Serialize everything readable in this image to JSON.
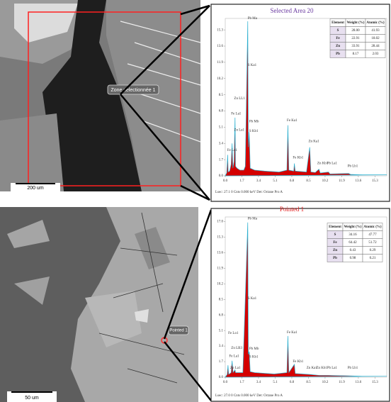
{
  "images": [
    {
      "label": "Zone sélectionnée 1",
      "scale": "200 um"
    },
    {
      "label": "Pointed 1",
      "scale": "50 um"
    }
  ],
  "chart_data": [
    {
      "type": "spectrum",
      "title": "Selected Area 20",
      "color": "#d40000",
      "line_color": "#2ab0d0",
      "footer": "Lsec: 27.1    0 Cnts    0.000 keV    Det: Octane Pro A",
      "xlim": [
        0,
        16.5
      ],
      "xticks": [
        {
          "value": 0,
          "label": "0.0"
        },
        1.7,
        3.4,
        5.1,
        6.8,
        8.5,
        10.2,
        11.9,
        13.6,
        15.3
      ],
      "ylim": [
        0,
        16.5
      ],
      "yticks": [
        {
          "value": 0,
          "label": "0.0"
        },
        1.7,
        3.4,
        5.1,
        6.8,
        8.5,
        10.2,
        11.9,
        13.6,
        15.3
      ],
      "x": [
        0,
        0.15,
        0.25,
        0.3,
        0.45,
        0.6,
        0.7,
        0.78,
        0.9,
        1.0,
        1.05,
        1.2,
        1.5,
        1.9,
        2.05,
        2.3,
        2.36,
        2.45,
        2.55,
        3.0,
        4.0,
        5.5,
        6.3,
        6.4,
        6.5,
        7.0,
        7.06,
        7.15,
        8.3,
        8.63,
        8.75,
        9.2,
        9.57,
        9.7,
        10.55,
        10.7,
        12.6,
        12.8,
        14,
        16.5
      ],
      "values": [
        0,
        0.3,
        2.2,
        0.4,
        0.5,
        1.2,
        3.4,
        0.8,
        1.5,
        6.1,
        1.0,
        0.8,
        0.6,
        0.6,
        1.0,
        16.2,
        3,
        4.6,
        0.8,
        0.6,
        0.5,
        0.4,
        0.6,
        5.3,
        0.6,
        0.5,
        1.3,
        0.5,
        0.4,
        3.0,
        0.4,
        0.35,
        0.7,
        0.3,
        0.4,
        0.2,
        0.25,
        0.15,
        0.1,
        0.1
      ],
      "annotations": [
        {
          "text": "Pb Ma",
          "x": 2.3,
          "y": 16.5
        },
        {
          "text": "S Ka1",
          "x": 2.3,
          "y": 11.6
        },
        {
          "text": "Zn LL1",
          "x": 0.9,
          "y": 8.1
        },
        {
          "text": "Fe La1",
          "x": 0.6,
          "y": 6.5
        },
        {
          "text": "Zn La1",
          "x": 0.9,
          "y": 4.8
        },
        {
          "text": "Pb Mb",
          "x": 2.45,
          "y": 5.7
        },
        {
          "text": "S Kb1",
          "x": 2.45,
          "y": 4.7
        },
        {
          "text": "Fe Lo1",
          "x": 0.2,
          "y": 2.7
        },
        {
          "text": "Fe Ka1",
          "x": 6.3,
          "y": 5.8
        },
        {
          "text": "Fe Kb1",
          "x": 6.9,
          "y": 1.9
        },
        {
          "text": "Zn Ka1",
          "x": 8.5,
          "y": 3.6
        },
        {
          "text": "Zn Kb1",
          "x": 9.4,
          "y": 1.3
        },
        {
          "text": "Pb La1",
          "x": 10.4,
          "y": 1.3
        },
        {
          "text": "Pb Lb1",
          "x": 12.5,
          "y": 1.0
        }
      ],
      "table": {
        "columns": [
          "Element",
          "Weight (%)",
          "Atomic (%)"
        ],
        "rows": [
          [
            "S",
            "28.00",
            "41.93"
          ],
          [
            "Fe",
            "22.91",
            "18.02"
          ],
          [
            "Zn",
            "33.91",
            "28.44"
          ],
          [
            "Pb",
            "8.17",
            "2.03"
          ]
        ]
      }
    },
    {
      "type": "spectrum",
      "title": "Pointed 1",
      "color": "#d40000",
      "line_color": "#2ab0d0",
      "footer": "Lsec: 27.0    0 Cnts    0.000 keV    Det: Octane Pro A",
      "xlim": [
        0,
        16.5
      ],
      "xticks": [
        {
          "value": 0,
          "label": "0.0"
        },
        1.7,
        3.4,
        5.1,
        6.8,
        8.5,
        10.2,
        11.9,
        13.6,
        15.3
      ],
      "ylim": [
        0,
        17.5
      ],
      "yticks": [
        {
          "value": 0,
          "label": "0.0"
        },
        1.7,
        3.4,
        5.1,
        6.8,
        8.5,
        10.2,
        11.9,
        13.6,
        15.3,
        {
          "value": 17,
          "label": "17.0"
        }
      ],
      "x": [
        0,
        0.2,
        0.28,
        0.35,
        0.6,
        0.7,
        0.8,
        1.0,
        1.05,
        1.8,
        2.3,
        2.36,
        2.45,
        2.55,
        3.0,
        5.0,
        6.3,
        6.4,
        6.5,
        7.06,
        7.15,
        8.6,
        9.6,
        10.5,
        12.6,
        14,
        16.5
      ],
      "values": [
        0,
        0.3,
        1.3,
        0.3,
        0.5,
        1.8,
        0.5,
        0.8,
        0.5,
        0.5,
        16.9,
        2.5,
        2.8,
        0.6,
        0.5,
        0.35,
        0.5,
        4.5,
        0.5,
        1.4,
        0.4,
        0.3,
        0.2,
        0.2,
        0.15,
        0.1,
        0.1
      ],
      "annotations": [
        {
          "text": "Pb Ma",
          "x": 2.3,
          "y": 17.3
        },
        {
          "text": "S Ka1",
          "x": 2.3,
          "y": 8.6
        },
        {
          "text": "Fe Lo1",
          "x": 0.3,
          "y": 4.8
        },
        {
          "text": "Zn LB3",
          "x": 0.6,
          "y": 3.2
        },
        {
          "text": "Fe La1",
          "x": 0.4,
          "y": 2.3
        },
        {
          "text": "Zn La1",
          "x": 0.5,
          "y": 1.0
        },
        {
          "text": "Pb Mb",
          "x": 2.45,
          "y": 3.1
        },
        {
          "text": "S Kb1",
          "x": 2.45,
          "y": 2.2
        },
        {
          "text": "Fe Ka1",
          "x": 6.3,
          "y": 4.9
        },
        {
          "text": "Fe Kb1",
          "x": 6.9,
          "y": 1.7
        },
        {
          "text": "Zn Ka1",
          "x": 8.3,
          "y": 1.0
        },
        {
          "text": "Zn Kb1",
          "x": 9.3,
          "y": 1.0
        },
        {
          "text": "Pb La1",
          "x": 10.4,
          "y": 1.0
        },
        {
          "text": "Pb Lb1",
          "x": 12.5,
          "y": 1.0
        }
      ],
      "table": {
        "columns": [
          "Element",
          "Weight (%)",
          "Atomic (%)"
        ],
        "rows": [
          [
            "S",
            "34.16",
            "47.77"
          ],
          [
            "Fe",
            "64.42",
            "51.72"
          ],
          [
            "Zn",
            "0.43",
            "0.29"
          ],
          [
            "Pb",
            "0.98",
            "0.21"
          ]
        ]
      }
    }
  ]
}
